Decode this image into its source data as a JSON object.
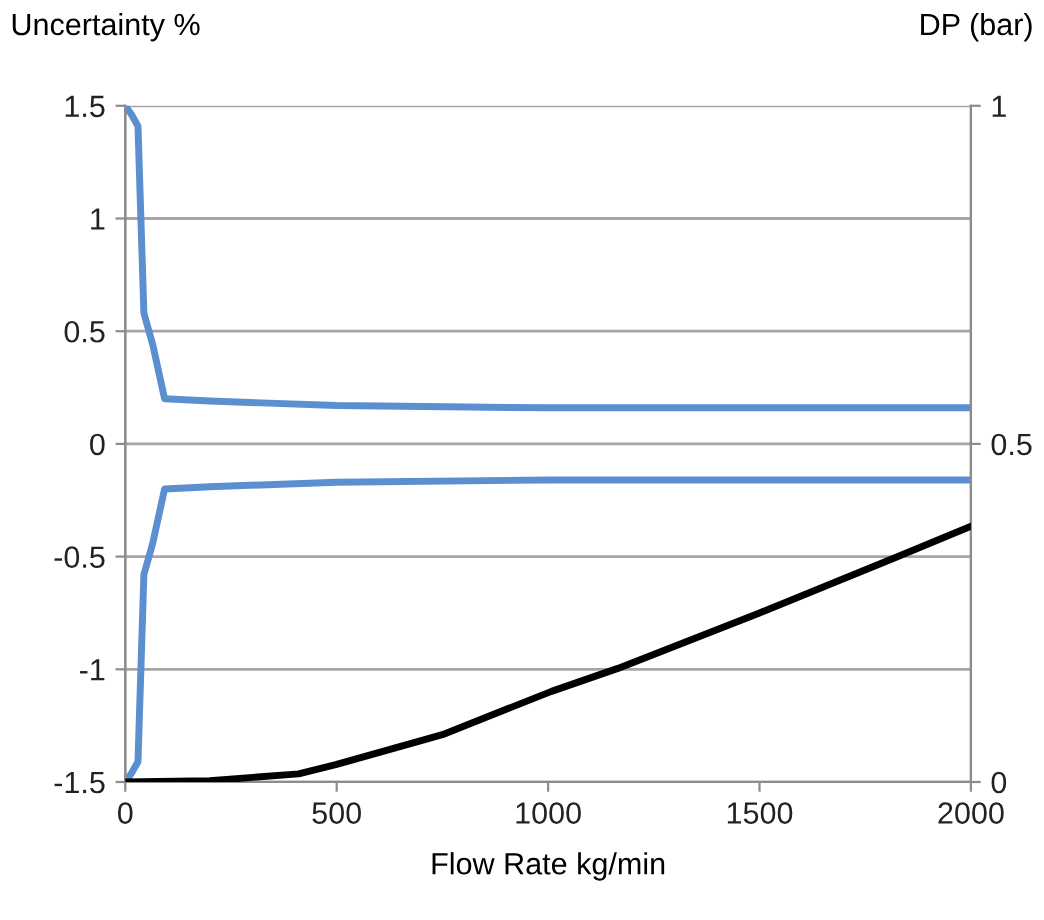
{
  "chart_data": {
    "type": "line",
    "xlabel": "Flow Rate kg/min",
    "ylabel": "Uncertainty %",
    "y2label": "DP (bar)",
    "xlim": [
      0,
      2000
    ],
    "xticks": [
      0,
      500,
      1000,
      1500,
      2000
    ],
    "ylim": [
      -1.5,
      1.5
    ],
    "yticks": [
      -1.5,
      -1,
      -0.5,
      0,
      0.5,
      1,
      1.5
    ],
    "y2lim": [
      0,
      1
    ],
    "y2ticks": [
      0,
      0.5,
      1
    ],
    "grid": "y",
    "legend": false,
    "marker": "none",
    "line_style": "solid",
    "series": [
      {
        "color": "#5b8fd0",
        "x": [
          0,
          15,
          30,
          44,
          65,
          93,
          200,
          500,
          1000,
          1500,
          2000
        ],
        "values": [
          1.5,
          1.46,
          1.41,
          0.58,
          0.44,
          0.2,
          0.19,
          0.17,
          0.16,
          0.16,
          0.16
        ]
      },
      {
        "color": "#5b8fd0",
        "x": [
          0,
          15,
          30,
          44,
          65,
          93,
          200,
          500,
          1000,
          1500,
          2000
        ],
        "values": [
          -1.5,
          -1.46,
          -1.41,
          -0.58,
          -0.44,
          -0.2,
          -0.19,
          -0.17,
          -0.16,
          -0.16,
          -0.16
        ]
      },
      {
        "color": "#000000",
        "axis": "y2",
        "x": [
          0,
          200,
          410,
          500,
          750,
          1008,
          1165,
          1500,
          1826,
          2000
        ],
        "values": [
          0,
          0.002,
          0.012,
          0.026,
          0.07,
          0.134,
          0.168,
          0.25,
          0.333,
          0.378
        ]
      }
    ]
  }
}
